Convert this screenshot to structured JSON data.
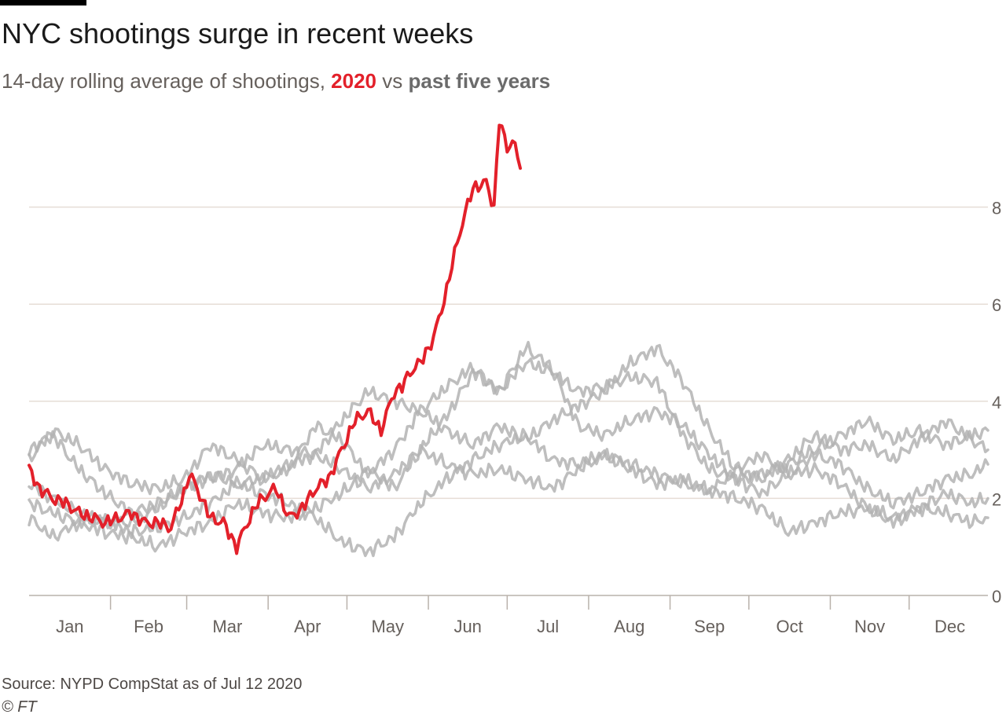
{
  "header": {
    "title": "NYC shootings surge in recent weeks",
    "subtitle_prefix": "14-day rolling average of shootings,",
    "subtitle_highlight_red": "2020",
    "subtitle_middle": "vs",
    "subtitle_highlight_grey": "past five years"
  },
  "footer": {
    "source": "Source: NYPD CompStat as of Jul 12 2020",
    "copyright": "© FT"
  },
  "colors": {
    "highlight_2020": "#e3202a",
    "past_years": "#b3b3b3",
    "gridline": "#e6ddd6",
    "axis_text": "#66605c"
  },
  "chart_data": {
    "type": "line",
    "title": "NYC shootings surge in recent weeks",
    "subtitle": "14-day rolling average of shootings, 2020 vs past five years",
    "xlabel": "",
    "ylabel": "",
    "x_unit": "day_of_year",
    "xlim": [
      1,
      366
    ],
    "ylim": [
      0,
      10
    ],
    "y_ticks": [
      0,
      2,
      4,
      6,
      8
    ],
    "y_axis_position": "right",
    "grid": true,
    "legend": "none",
    "months": [
      "Jan",
      "Feb",
      "Mar",
      "Apr",
      "May",
      "Jun",
      "Jul",
      "Aug",
      "Sep",
      "Oct",
      "Nov",
      "Dec"
    ],
    "month_start_days": [
      1,
      32,
      61,
      92,
      122,
      153,
      183,
      214,
      245,
      275,
      306,
      336
    ],
    "series": [
      {
        "color": "#b3b3b3",
        "x": [
          1,
          10,
          20,
          30,
          40,
          50,
          60,
          70,
          80,
          90,
          100,
          110,
          120,
          130,
          140,
          150,
          160,
          170,
          180,
          190,
          200,
          210,
          220,
          230,
          240,
          250,
          260,
          270,
          280,
          290,
          300,
          310,
          320,
          330,
          340,
          350,
          360,
          366
        ],
        "y": [
          3.0,
          3.3,
          2.6,
          2.1,
          1.7,
          1.9,
          2.2,
          2.4,
          2.6,
          3.1,
          3.0,
          2.9,
          3.6,
          4.2,
          4.0,
          3.8,
          4.3,
          4.7,
          4.2,
          4.8,
          4.6,
          4.2,
          4.3,
          4.5,
          4.4,
          3.3,
          2.6,
          2.4,
          2.5,
          2.7,
          3.0,
          3.3,
          3.6,
          3.2,
          3.4,
          3.1,
          3.3,
          3.4
        ]
      },
      {
        "color": "#b3b3b3",
        "x": [
          1,
          10,
          20,
          30,
          40,
          50,
          60,
          70,
          80,
          90,
          100,
          110,
          120,
          130,
          140,
          150,
          160,
          170,
          180,
          190,
          200,
          210,
          220,
          230,
          240,
          250,
          260,
          270,
          280,
          290,
          300,
          310,
          320,
          330,
          340,
          350,
          360,
          366
        ],
        "y": [
          2.8,
          3.4,
          3.1,
          2.6,
          2.3,
          2.2,
          2.4,
          3.1,
          2.8,
          2.4,
          2.6,
          3.5,
          3.2,
          2.5,
          3.0,
          3.8,
          3.4,
          3.1,
          3.5,
          3.2,
          3.6,
          3.9,
          4.2,
          4.8,
          5.1,
          4.4,
          3.4,
          2.6,
          2.4,
          2.8,
          3.3,
          3.0,
          3.1,
          2.8,
          3.2,
          3.6,
          3.2,
          3.0
        ]
      },
      {
        "color": "#b3b3b3",
        "x": [
          1,
          10,
          20,
          30,
          40,
          50,
          60,
          70,
          80,
          90,
          100,
          110,
          120,
          130,
          140,
          150,
          160,
          170,
          180,
          190,
          200,
          210,
          220,
          230,
          240,
          250,
          260,
          270,
          280,
          290,
          300,
          310,
          320,
          330,
          340,
          350,
          360,
          366
        ],
        "y": [
          2.3,
          2.0,
          1.7,
          1.5,
          1.5,
          1.8,
          2.2,
          2.5,
          2.3,
          2.4,
          2.7,
          2.9,
          2.6,
          2.2,
          2.5,
          3.0,
          3.7,
          4.6,
          4.2,
          5.1,
          4.7,
          3.5,
          3.3,
          3.6,
          3.8,
          3.5,
          2.9,
          2.4,
          2.1,
          2.5,
          2.9,
          2.7,
          2.2,
          1.9,
          2.1,
          2.4,
          2.5,
          2.7
        ]
      },
      {
        "color": "#b3b3b3",
        "x": [
          1,
          10,
          20,
          30,
          40,
          50,
          60,
          70,
          80,
          90,
          100,
          110,
          120,
          130,
          140,
          150,
          160,
          170,
          180,
          190,
          200,
          210,
          220,
          230,
          240,
          250,
          260,
          270,
          280,
          290,
          300,
          310,
          320,
          330,
          340,
          350,
          360,
          366
        ],
        "y": [
          1.9,
          1.7,
          1.5,
          1.6,
          1.3,
          1.4,
          1.6,
          1.9,
          2.3,
          2.1,
          1.9,
          1.6,
          1.1,
          0.9,
          1.2,
          1.9,
          2.4,
          2.8,
          3.1,
          3.3,
          2.8,
          2.7,
          2.9,
          2.6,
          2.3,
          2.4,
          2.1,
          2.6,
          2.9,
          2.5,
          2.6,
          2.3,
          1.8,
          1.6,
          1.8,
          2.1,
          1.9,
          2.0
        ]
      },
      {
        "color": "#b3b3b3",
        "x": [
          1,
          10,
          20,
          30,
          40,
          50,
          60,
          70,
          80,
          90,
          100,
          110,
          120,
          130,
          140,
          150,
          160,
          170,
          180,
          190,
          200,
          210,
          220,
          230,
          240,
          250,
          260,
          270,
          280,
          290,
          300,
          310,
          320,
          330,
          340,
          350,
          360,
          366
        ],
        "y": [
          1.6,
          1.2,
          1.5,
          1.3,
          1.2,
          1.0,
          1.3,
          1.5,
          1.9,
          1.7,
          1.6,
          1.8,
          2.1,
          2.6,
          2.2,
          3.0,
          2.7,
          2.5,
          2.6,
          2.4,
          2.2,
          2.6,
          2.9,
          2.7,
          2.5,
          2.3,
          2.2,
          2.0,
          1.8,
          1.3,
          1.5,
          1.7,
          1.8,
          1.5,
          1.8,
          1.7,
          1.5,
          1.6
        ]
      },
      {
        "name": "2020",
        "color": "#e3202a",
        "highlight": true,
        "x": [
          1,
          5,
          10,
          15,
          20,
          25,
          30,
          35,
          40,
          45,
          50,
          55,
          60,
          62,
          65,
          70,
          75,
          80,
          85,
          88,
          92,
          95,
          100,
          105,
          110,
          115,
          120,
          125,
          130,
          135,
          140,
          143,
          146,
          150,
          155,
          160,
          162,
          165,
          170,
          175,
          178,
          180,
          183,
          185,
          188
        ],
        "y": [
          2.6,
          2.2,
          2.0,
          1.9,
          1.7,
          1.6,
          1.5,
          1.6,
          1.7,
          1.5,
          1.5,
          1.4,
          2.1,
          2.5,
          2.2,
          1.6,
          1.5,
          1.0,
          1.6,
          1.9,
          2.1,
          2.2,
          1.6,
          1.8,
          2.2,
          2.4,
          3.0,
          3.6,
          3.8,
          3.4,
          4.2,
          4.3,
          4.6,
          4.8,
          5.3,
          6.3,
          6.8,
          7.5,
          8.4,
          8.5,
          8.0,
          9.8,
          9.2,
          9.4,
          8.8
        ]
      }
    ]
  }
}
